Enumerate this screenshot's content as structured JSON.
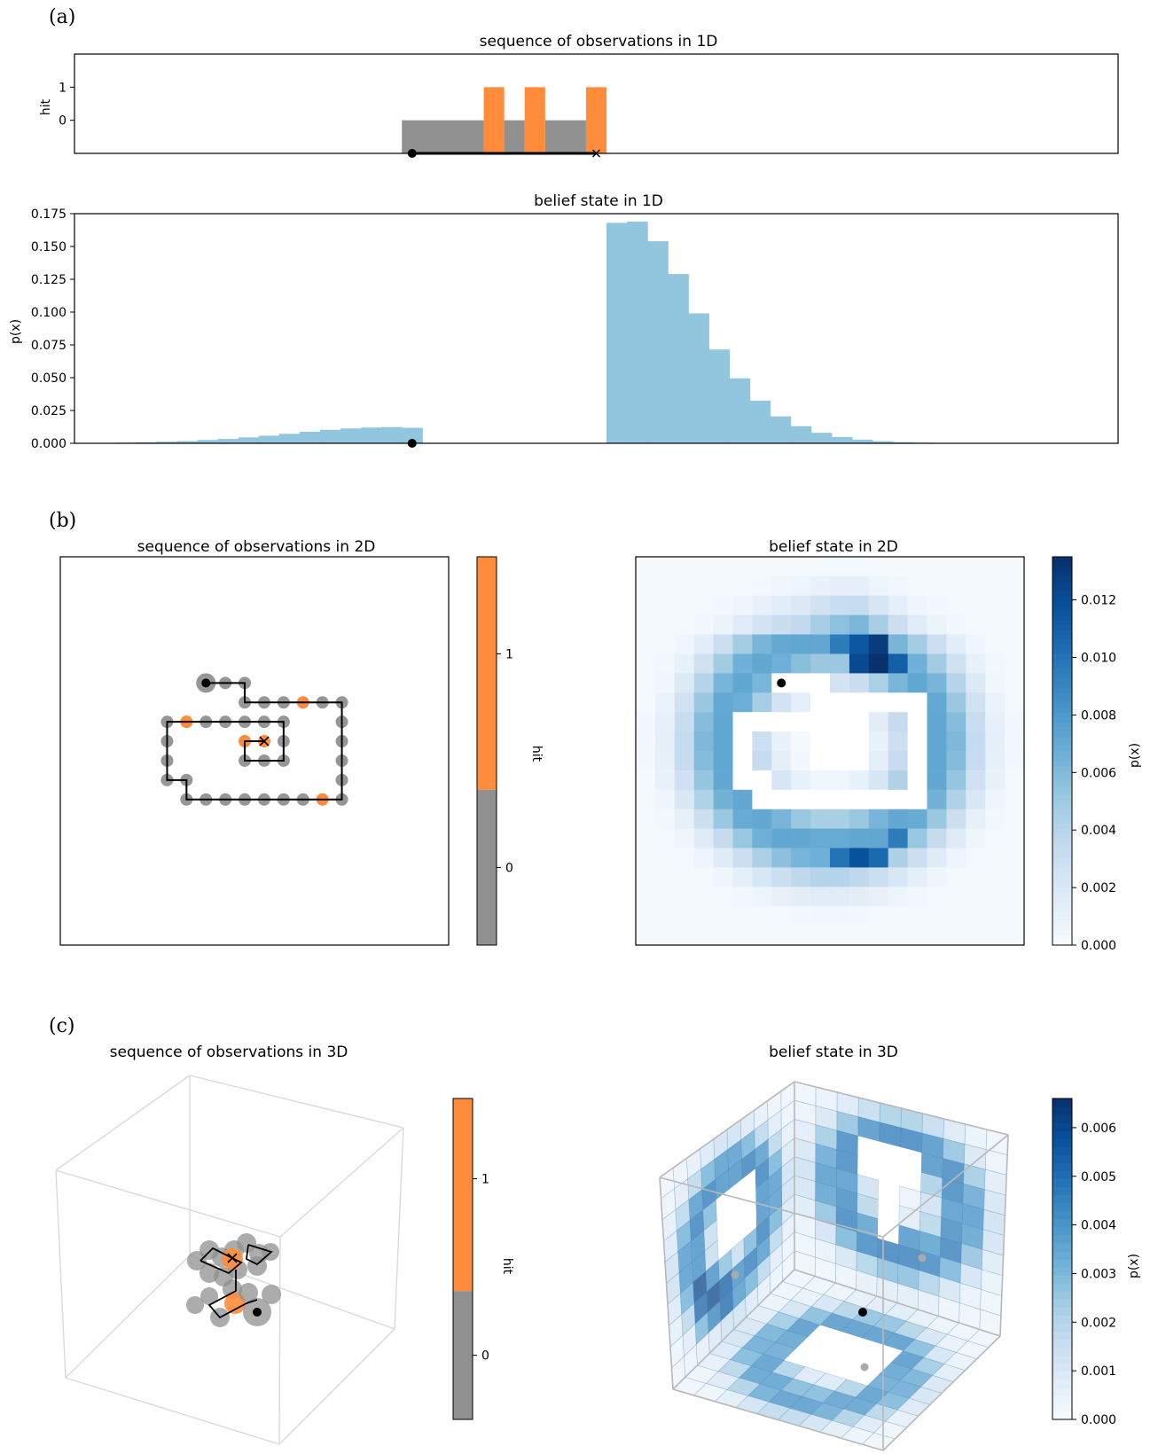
{
  "panels": {
    "a": {
      "label": "(a)",
      "obs_title": "sequence of observations in 1D",
      "obs_ylabel": "hit",
      "obs_yticks": [
        "0",
        "1"
      ],
      "belief_title": "belief state in 1D",
      "belief_ylabel": "p(x)",
      "belief_yticks": [
        "0.000",
        "0.025",
        "0.050",
        "0.075",
        "0.100",
        "0.125",
        "0.150",
        "0.175"
      ]
    },
    "b": {
      "label": "(b)",
      "obs_title": "sequence of observations in 2D",
      "belief_title": "belief state in 2D",
      "hit_cbar_label": "hit",
      "hit_cbar_ticks": [
        "0",
        "1"
      ],
      "p_cbar_label": "p(x)",
      "p_cbar_ticks": [
        "0.000",
        "0.002",
        "0.004",
        "0.006",
        "0.008",
        "0.010",
        "0.012"
      ]
    },
    "c": {
      "label": "(c)",
      "obs_title": "sequence of observations in 3D",
      "belief_title": "belief state in 3D",
      "hit_cbar_label": "hit",
      "hit_cbar_ticks": [
        "0",
        "1"
      ],
      "p_cbar_label": "p(x)",
      "p_cbar_ticks": [
        "0.000",
        "0.001",
        "0.002",
        "0.003",
        "0.004",
        "0.005",
        "0.006"
      ]
    }
  },
  "colors": {
    "hit": "#ff8c3a",
    "miss": "#909090",
    "belief_1d": "#92c5de",
    "blues_dark": "#08306b"
  },
  "chart_data": [
    {
      "type": "bar",
      "name": "sequence of observations in 1D",
      "segments": [
        {
          "x0": 16,
          "x1": 20,
          "hit": 0
        },
        {
          "x0": 20,
          "x1": 21,
          "hit": 1
        },
        {
          "x0": 21,
          "x1": 22,
          "hit": 0
        },
        {
          "x0": 22,
          "x1": 23,
          "hit": 1
        },
        {
          "x0": 23,
          "x1": 25,
          "hit": 0
        },
        {
          "x0": 25,
          "x1": 26,
          "hit": 1
        }
      ],
      "start": 16.5,
      "end": 25.5,
      "xlim": [
        0,
        51
      ],
      "ylim": [
        -1,
        2
      ],
      "yticks": [
        0,
        1
      ],
      "ylabel": "hit"
    },
    {
      "type": "bar",
      "name": "belief state in 1D",
      "bins_start": 2,
      "bin_width": 1,
      "values": [
        0.0005,
        0.0008,
        0.0012,
        0.0017,
        0.0025,
        0.0033,
        0.0045,
        0.0058,
        0.0072,
        0.0088,
        0.0103,
        0.0113,
        0.012,
        0.0124,
        0.0118,
        null,
        null,
        null,
        null,
        null,
        null,
        null,
        null,
        null,
        0.168,
        0.169,
        0.154,
        0.129,
        0.099,
        0.0715,
        0.0495,
        0.0325,
        0.0205,
        0.013,
        0.008,
        0.0048,
        0.0028,
        0.0016,
        0.0009,
        0.0005,
        0.0003,
        0.0002
      ],
      "marker": 16.5,
      "xlim": [
        0,
        51
      ],
      "ylim": [
        0,
        0.175
      ],
      "ylabel": "p(x)"
    },
    {
      "type": "scatter",
      "name": "sequence of observations in 2D",
      "grid_size": 20,
      "path": [
        [
          7.5,
          6.5
        ],
        [
          8.5,
          6.5
        ],
        [
          9.5,
          6.5
        ],
        [
          9.5,
          7.5
        ],
        [
          10.5,
          7.5
        ],
        [
          11.5,
          7.5
        ],
        [
          12.5,
          7.5
        ],
        [
          13.5,
          7.5
        ],
        [
          14.5,
          7.5
        ],
        [
          14.5,
          8.5
        ],
        [
          14.5,
          9.5
        ],
        [
          14.5,
          10.5
        ],
        [
          14.5,
          11.5
        ],
        [
          14.5,
          12.5
        ],
        [
          13.5,
          12.5
        ],
        [
          12.5,
          12.5
        ],
        [
          11.5,
          12.5
        ],
        [
          10.5,
          12.5
        ],
        [
          9.5,
          12.5
        ],
        [
          8.5,
          12.5
        ],
        [
          7.5,
          12.5
        ],
        [
          6.5,
          12.5
        ],
        [
          6.5,
          11.5
        ],
        [
          5.5,
          11.5
        ],
        [
          5.5,
          10.5
        ],
        [
          5.5,
          9.5
        ],
        [
          5.5,
          8.5
        ],
        [
          6.5,
          8.5
        ],
        [
          7.5,
          8.5
        ],
        [
          8.5,
          8.5
        ],
        [
          9.5,
          8.5
        ],
        [
          10.5,
          8.5
        ],
        [
          11.5,
          8.5
        ],
        [
          11.5,
          9.5
        ],
        [
          11.5,
          10.5
        ],
        [
          10.5,
          10.5
        ],
        [
          9.5,
          10.5
        ],
        [
          9.5,
          9.5
        ],
        [
          10.5,
          9.5
        ]
      ],
      "hits": [
        [
          12.5,
          7.5
        ],
        [
          6.5,
          8.5
        ],
        [
          9.5,
          9.5
        ],
        [
          10.5,
          9.5
        ],
        [
          13.5,
          12.5
        ]
      ],
      "start": [
        7.5,
        6.5
      ],
      "end": [
        10.5,
        9.5
      ]
    },
    {
      "type": "heatmap",
      "name": "belief state in 2D",
      "grid_size": 20,
      "vmax": 0.0135,
      "cells": [
        [
          2.0,
          0.6
        ],
        [
          2.5,
          0.6
        ]
      ],
      "peak_cells": [
        [
          12,
          5,
          0.0134
        ],
        [
          11,
          5,
          0.0122
        ],
        [
          12,
          4,
          0.0128
        ],
        [
          11,
          4,
          0.0115
        ],
        [
          13,
          5,
          0.011
        ],
        [
          10,
          4,
          0.0095
        ],
        [
          11,
          15,
          0.0118
        ],
        [
          12,
          15,
          0.0105
        ],
        [
          10,
          15,
          0.01
        ],
        [
          13,
          14,
          0.0095
        ]
      ],
      "start": [
        7.5,
        6.5
      ]
    },
    {
      "type": "scatter",
      "name": "sequence of observations in 3D"
    },
    {
      "type": "heatmap",
      "name": "belief state in 3D",
      "vmax": 0.0066
    }
  ]
}
